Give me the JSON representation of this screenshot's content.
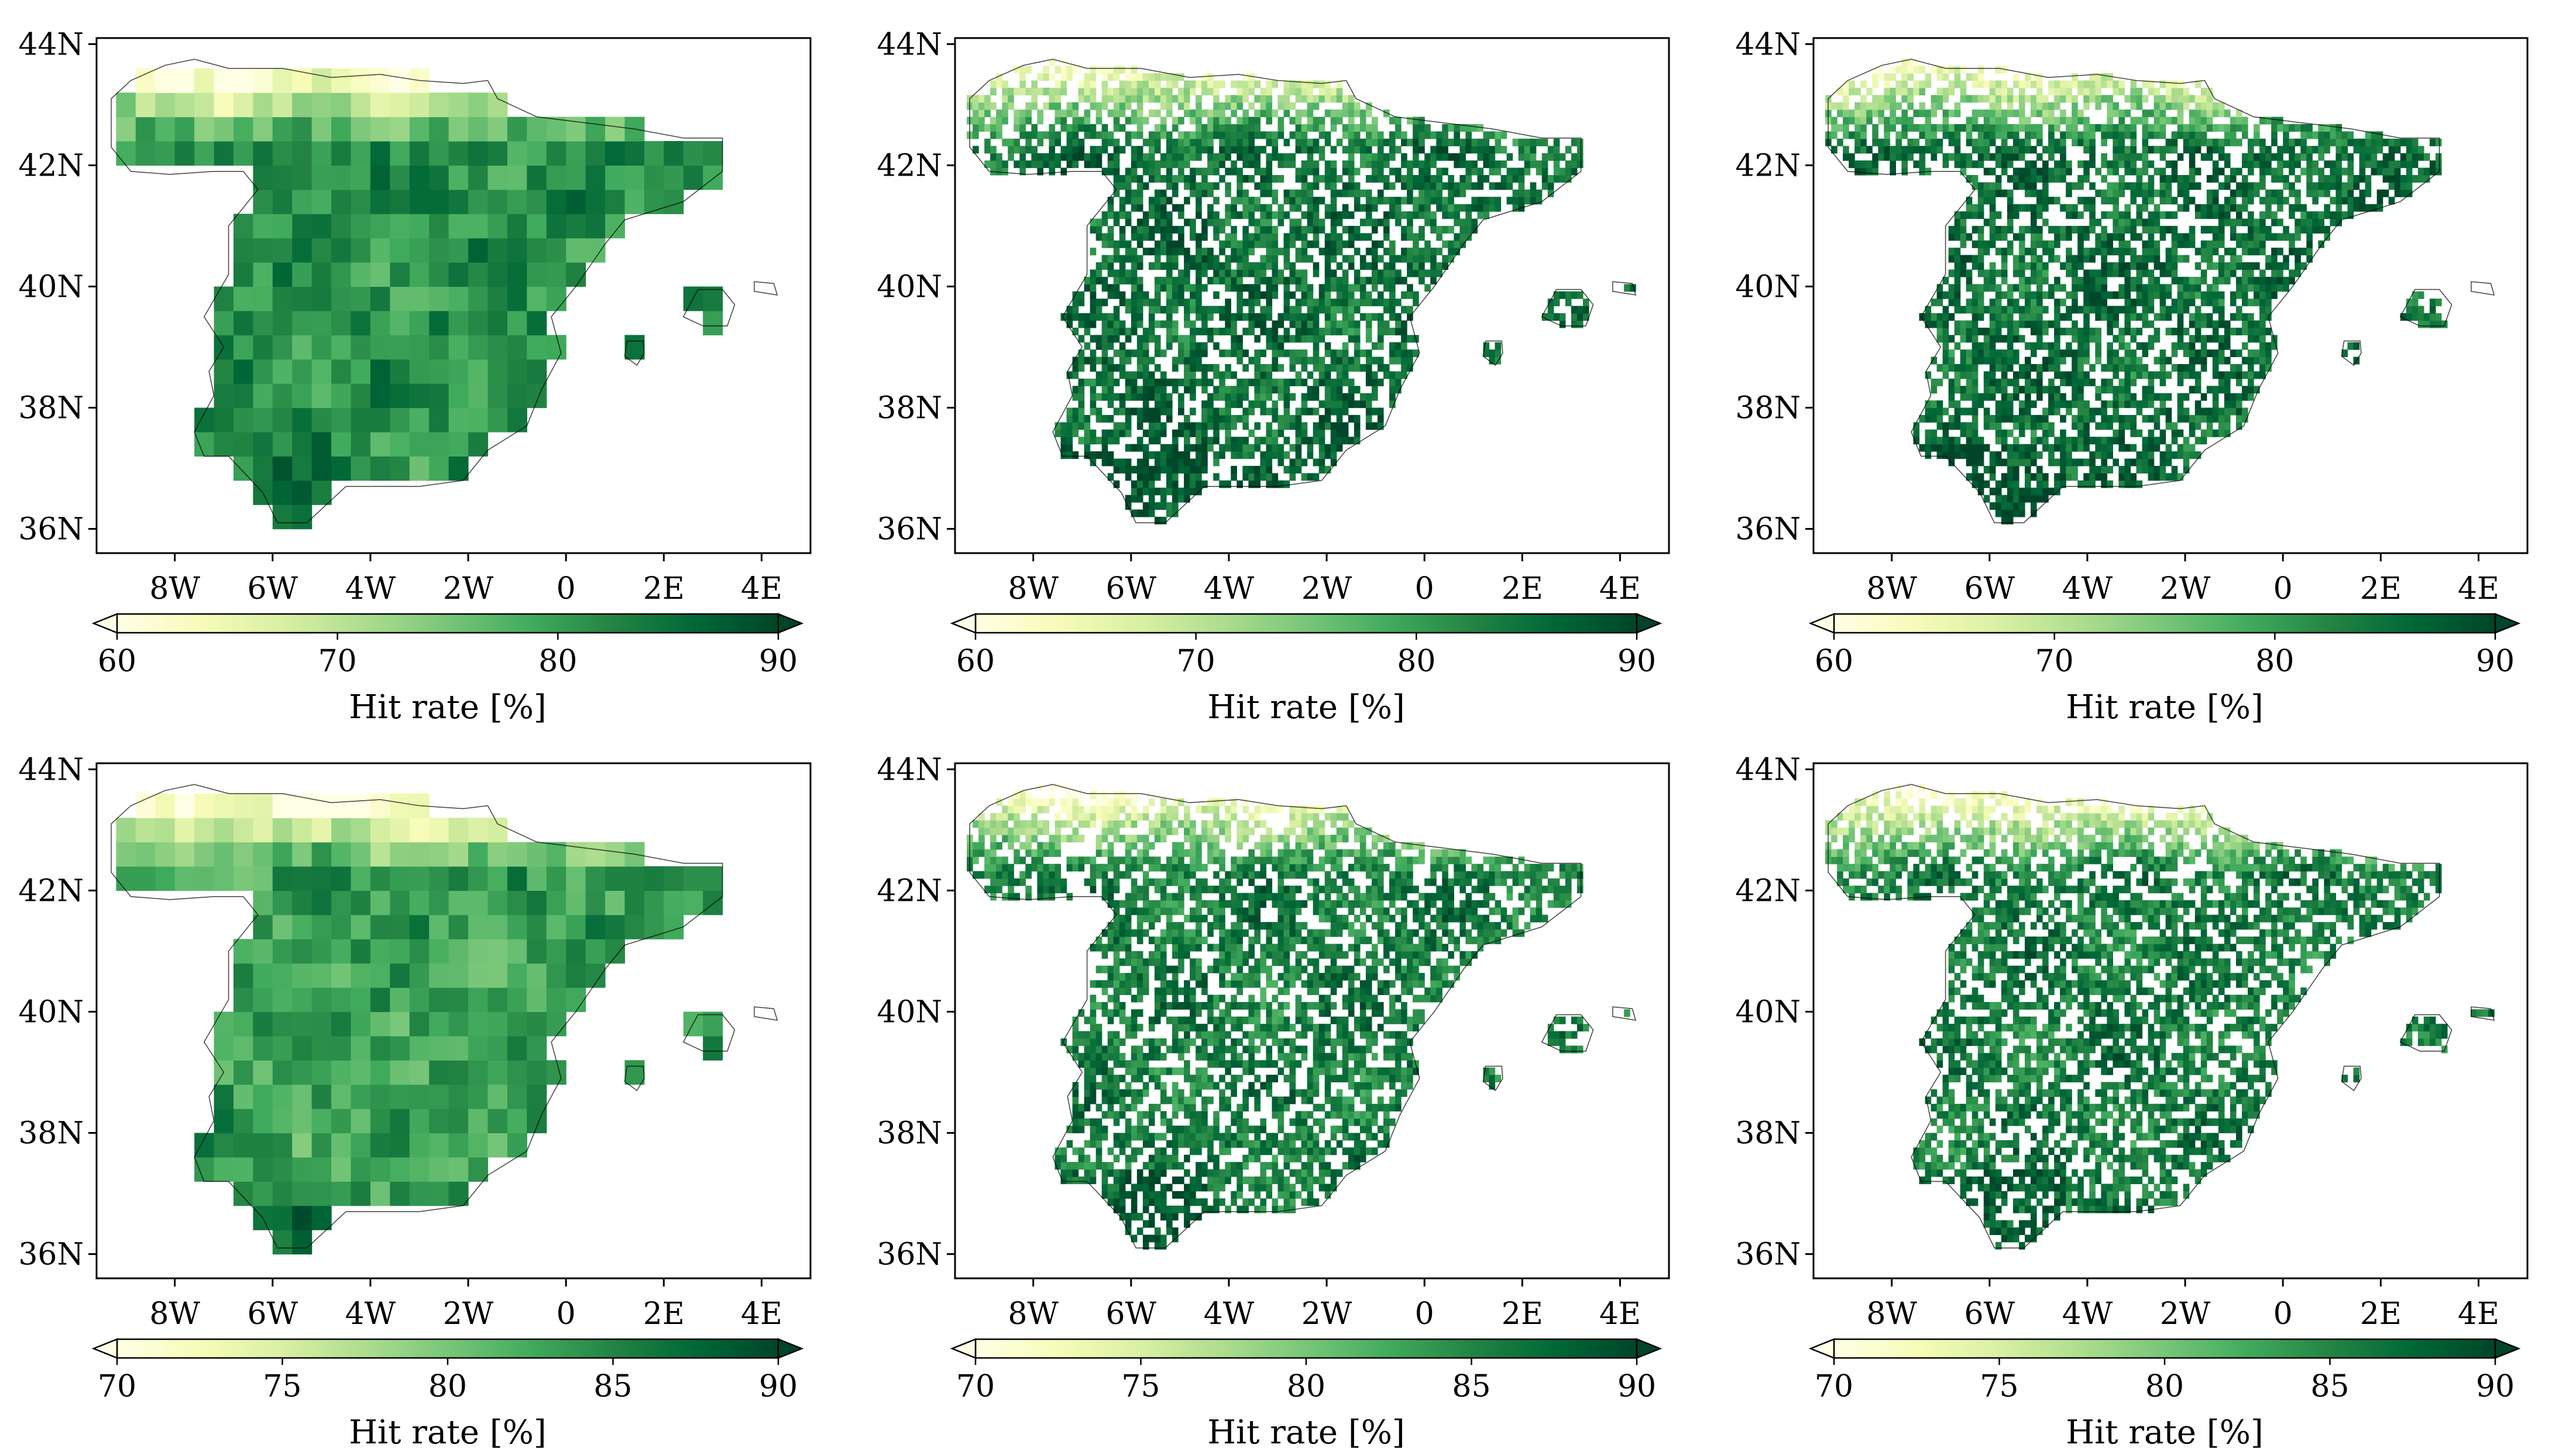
{
  "figure": {
    "colormap": [
      "#ffffe5",
      "#f7fcb9",
      "#d9f0a3",
      "#addd8e",
      "#78c679",
      "#41ab5d",
      "#238443",
      "#006837",
      "#004529"
    ],
    "border_color": "#000000",
    "x_ticks": [
      {
        "lon": -8,
        "label": "8W"
      },
      {
        "lon": -6,
        "label": "6W"
      },
      {
        "lon": -4,
        "label": "4W"
      },
      {
        "lon": -2,
        "label": "2W"
      },
      {
        "lon": 0,
        "label": "0"
      },
      {
        "lon": 2,
        "label": "2E"
      },
      {
        "lon": 4,
        "label": "4E"
      }
    ],
    "y_ticks": [
      {
        "lat": 36,
        "label": "36N"
      },
      {
        "lat": 38,
        "label": "38N"
      },
      {
        "lat": 40,
        "label": "40N"
      },
      {
        "lat": 42,
        "label": "42N"
      },
      {
        "lat": 44,
        "label": "44N"
      }
    ],
    "extent": {
      "lon_min": -9.6,
      "lon_max": 5.0,
      "lat_min": 35.6,
      "lat_max": 44.1
    }
  },
  "chart_data": [
    {
      "type": "heatmap",
      "panel": "top-left",
      "grid": "coarse",
      "sparse": false,
      "colorbar": {
        "label": "Hit rate [%]",
        "min": 60,
        "max": 90,
        "ticks": [
          60,
          70,
          80,
          90
        ]
      }
    },
    {
      "type": "heatmap",
      "panel": "top-middle",
      "grid": "fine",
      "sparse": true,
      "colorbar": {
        "label": "Hit rate [%]",
        "min": 60,
        "max": 90,
        "ticks": [
          60,
          70,
          80,
          90
        ]
      }
    },
    {
      "type": "heatmap",
      "panel": "top-right",
      "grid": "fine",
      "sparse": true,
      "colorbar": {
        "label": "Hit rate [%]",
        "min": 60,
        "max": 90,
        "ticks": [
          60,
          70,
          80,
          90
        ]
      }
    },
    {
      "type": "heatmap",
      "panel": "bottom-left",
      "grid": "coarse",
      "sparse": false,
      "colorbar": {
        "label": "Hit rate [%]",
        "min": 70,
        "max": 90,
        "ticks": [
          70,
          75,
          80,
          85,
          90
        ]
      }
    },
    {
      "type": "heatmap",
      "panel": "bottom-middle",
      "grid": "fine",
      "sparse": true,
      "colorbar": {
        "label": "Hit rate [%]",
        "min": 70,
        "max": 90,
        "ticks": [
          70,
          75,
          80,
          85,
          90
        ]
      }
    },
    {
      "type": "heatmap",
      "panel": "bottom-right",
      "grid": "fine",
      "sparse": true,
      "colorbar": {
        "label": "Hit rate [%]",
        "min": 70,
        "max": 90,
        "ticks": [
          70,
          75,
          80,
          85,
          90
        ]
      }
    }
  ]
}
